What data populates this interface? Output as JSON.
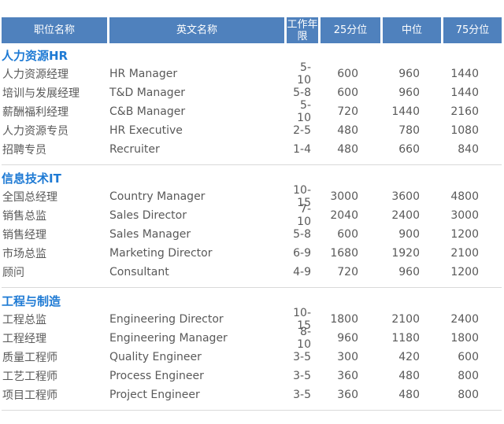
{
  "colors": {
    "header_bg": "#4f81bd",
    "header_text": "#ffffff",
    "section_title": "#1e7ad4",
    "body_text": "#595959",
    "separator": "#d9d9d9",
    "page_bg": "#ffffff"
  },
  "table": {
    "headers": [
      "职位名称",
      "英文名称",
      "工作年限",
      "25分位",
      "中位",
      "75分位"
    ],
    "sections": [
      {
        "title": "人力资源HR",
        "rows": [
          [
            "人力资源经理",
            "HR Manager",
            "5-10",
            "600",
            "960",
            "1440"
          ],
          [
            "培训与发展经理",
            "T&D Manager",
            "5-8",
            "600",
            "960",
            "1440"
          ],
          [
            "薪酬福利经理",
            "C&B Manager",
            "5-10",
            "720",
            "1440",
            "2160"
          ],
          [
            "人力资源专员",
            "HR Executive",
            "2-5",
            "480",
            "780",
            "1080"
          ],
          [
            "招聘专员",
            "Recruiter",
            "1-4",
            "480",
            "660",
            "840"
          ]
        ]
      },
      {
        "title": "信息技术IT",
        "rows": [
          [
            "全国总经理",
            "Country Manager",
            "10-15",
            "3000",
            "3600",
            "4800"
          ],
          [
            "销售总监",
            "Sales Director",
            "7-10",
            "2040",
            "2400",
            "3000"
          ],
          [
            "销售经理",
            "Sales Manager",
            "5-8",
            "600",
            "900",
            "1200"
          ],
          [
            "市场总监",
            "Marketing Director",
            "6-9",
            "1680",
            "1920",
            "2100"
          ],
          [
            "顾问",
            "Consultant",
            "4-9",
            "720",
            "960",
            "1200"
          ]
        ]
      },
      {
        "title": "工程与制造",
        "rows": [
          [
            "工程总监",
            "Engineering Director",
            "10-15",
            "1800",
            "2100",
            "2400"
          ],
          [
            "工程经理",
            "Engineering Manager",
            "8-10",
            "960",
            "1180",
            "1800"
          ],
          [
            "质量工程师",
            "Quality Engineer",
            "3-5",
            "300",
            "420",
            "600"
          ],
          [
            "工艺工程师",
            "Process Engineer",
            "3-5",
            "360",
            "480",
            "800"
          ],
          [
            "项目工程师",
            "Project Engineer",
            "3-5",
            "360",
            "480",
            "800"
          ]
        ]
      }
    ]
  }
}
